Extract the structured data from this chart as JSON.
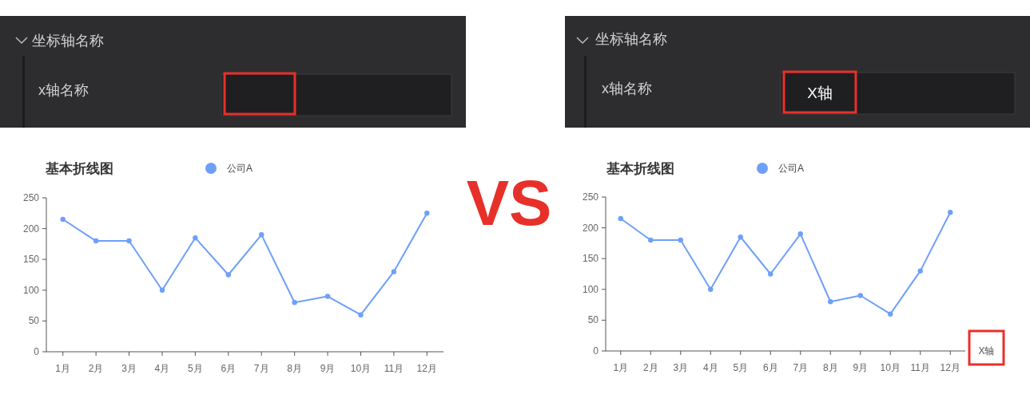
{
  "chart_data": [
    {
      "type": "other",
      "title": "坐标轴名称",
      "annotations": [
        "x轴名称"
      ]
    },
    {
      "type": "other",
      "title": "坐标轴名称",
      "annotations": [
        "x轴名称",
        "X轴"
      ]
    },
    {
      "type": "line",
      "title": "基本折线图",
      "categories": [
        "1月",
        "2月",
        "3月",
        "4月",
        "5月",
        "6月",
        "7月",
        "8月",
        "9月",
        "10月",
        "11月",
        "12月"
      ],
      "series": [
        {
          "name": "公司A",
          "color": "#6e9ffa",
          "values": [
            215,
            180,
            180,
            100,
            185,
            125,
            190,
            80,
            90,
            60,
            130,
            225
          ]
        }
      ],
      "ylim": [
        0,
        250
      ],
      "yticks": [
        0,
        50,
        100,
        150,
        200,
        250
      ],
      "legend": "top",
      "marker": "circle",
      "grid": false
    },
    {
      "type": "other",
      "title": "VS"
    },
    {
      "type": "line",
      "title": "基本折线图",
      "xlabel": "X轴",
      "categories": [
        "1月",
        "2月",
        "3月",
        "4月",
        "5月",
        "6月",
        "7月",
        "8月",
        "9月",
        "10月",
        "11月",
        "12月"
      ],
      "series": [
        {
          "name": "公司A",
          "color": "#6e9ffa",
          "values": [
            215,
            180,
            180,
            100,
            185,
            125,
            190,
            80,
            90,
            60,
            130,
            225
          ]
        }
      ],
      "ylim": [
        0,
        250
      ],
      "yticks": [
        0,
        50,
        100,
        150,
        200,
        250
      ],
      "legend": "top",
      "marker": "circle",
      "grid": false
    }
  ]
}
